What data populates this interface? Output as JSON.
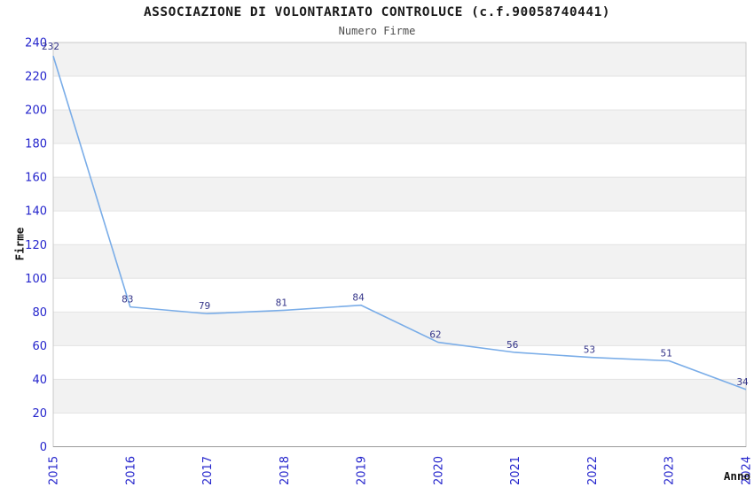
{
  "header": {
    "title": "ASSOCIAZIONE DI VOLONTARIATO CONTROLUCE (c.f.90058740441)",
    "subtitle": "Numero Firme"
  },
  "chart_data": {
    "type": "line",
    "title": "ASSOCIAZIONE DI VOLONTARIATO CONTROLUCE (c.f.90058740441)",
    "subtitle": "Numero Firme",
    "xlabel": "Anno",
    "ylabel": "Firme",
    "x": [
      2015,
      2016,
      2017,
      2018,
      2019,
      2020,
      2021,
      2022,
      2023,
      2024
    ],
    "series": [
      {
        "name": "Numero Firme",
        "values": [
          232,
          83,
          79,
          81,
          84,
          62,
          56,
          53,
          51,
          34
        ]
      }
    ],
    "ylim": [
      0,
      240
    ],
    "ytick_step": 20,
    "legend": "none",
    "grid": "horizontal-bands",
    "markers": "none",
    "data_labels_visible": true,
    "x_tick_rotation": -90,
    "colors": {
      "line": "#7aade8",
      "tick_labels": "#2424cc",
      "data_labels": "#333388",
      "band_fill": "#f2f2f2",
      "gridline": "#e3e3e3",
      "plot_border": "#c8c8c8",
      "bottom_axis": "#9a9a9a",
      "title": "#1a1a1a",
      "subtitle": "#4d4d4d",
      "axis_label": "#111111",
      "background": "#ffffff"
    }
  }
}
